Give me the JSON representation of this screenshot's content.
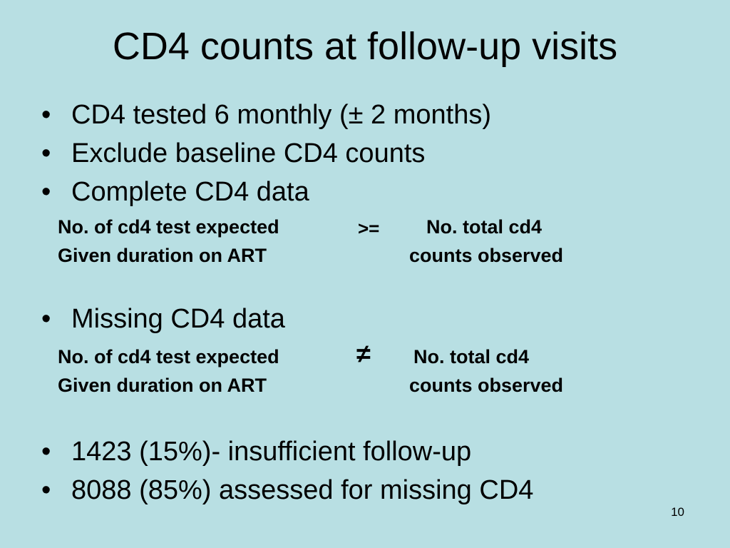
{
  "title": "CD4 counts at follow-up visits",
  "bullet_marker": "•",
  "bullets": [
    "CD4 tested 6 monthly (± 2 months)",
    "Exclude baseline CD4 counts",
    "Complete CD4 data",
    "Missing CD4 data",
    "1423 (15%)- insufficient follow-up",
    "8088 (85%) assessed for missing CD4"
  ],
  "complete_condition": {
    "left_line1": "No. of cd4 test expected",
    "left_line2": "Given duration on ART",
    "operator": ">=",
    "right_line1": "No. total cd4",
    "right_line2": "counts observed"
  },
  "missing_condition": {
    "left_line1": "No. of cd4 test expected",
    "left_line2": "Given duration on ART",
    "operator": "≠",
    "right_line1": "No. total cd4",
    "right_line2": "counts observed"
  },
  "page_number": "10"
}
